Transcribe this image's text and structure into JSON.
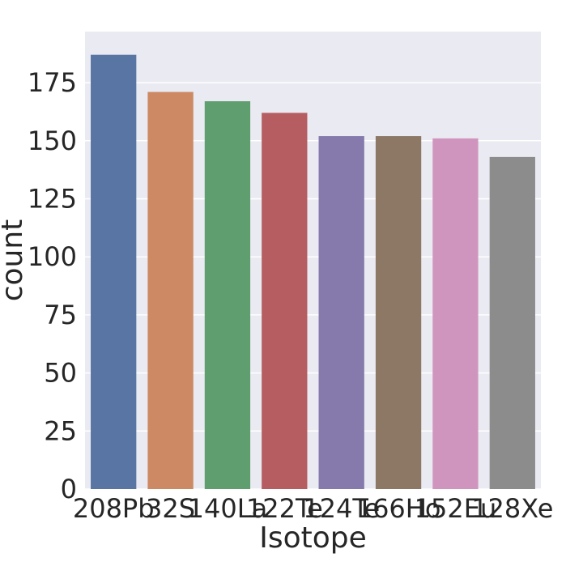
{
  "chart_data": {
    "type": "bar",
    "title": "",
    "xlabel": "Isotope",
    "ylabel": "count",
    "categories": [
      "208Pb",
      "32S",
      "140La",
      "122Te",
      "124Te",
      "166Ho",
      "152Eu",
      "128Xe"
    ],
    "values": [
      187,
      171,
      167,
      162,
      152,
      152,
      151,
      143
    ],
    "colors": [
      "#5975a4",
      "#cc8963",
      "#5f9e6e",
      "#b55d60",
      "#857aab",
      "#8d7866",
      "#d095bf",
      "#8c8c8c"
    ],
    "yticks": [
      0,
      25,
      50,
      75,
      100,
      125,
      150,
      175
    ],
    "ylim": [
      0,
      197
    ],
    "grid": true,
    "background": "#eaeaf2"
  }
}
